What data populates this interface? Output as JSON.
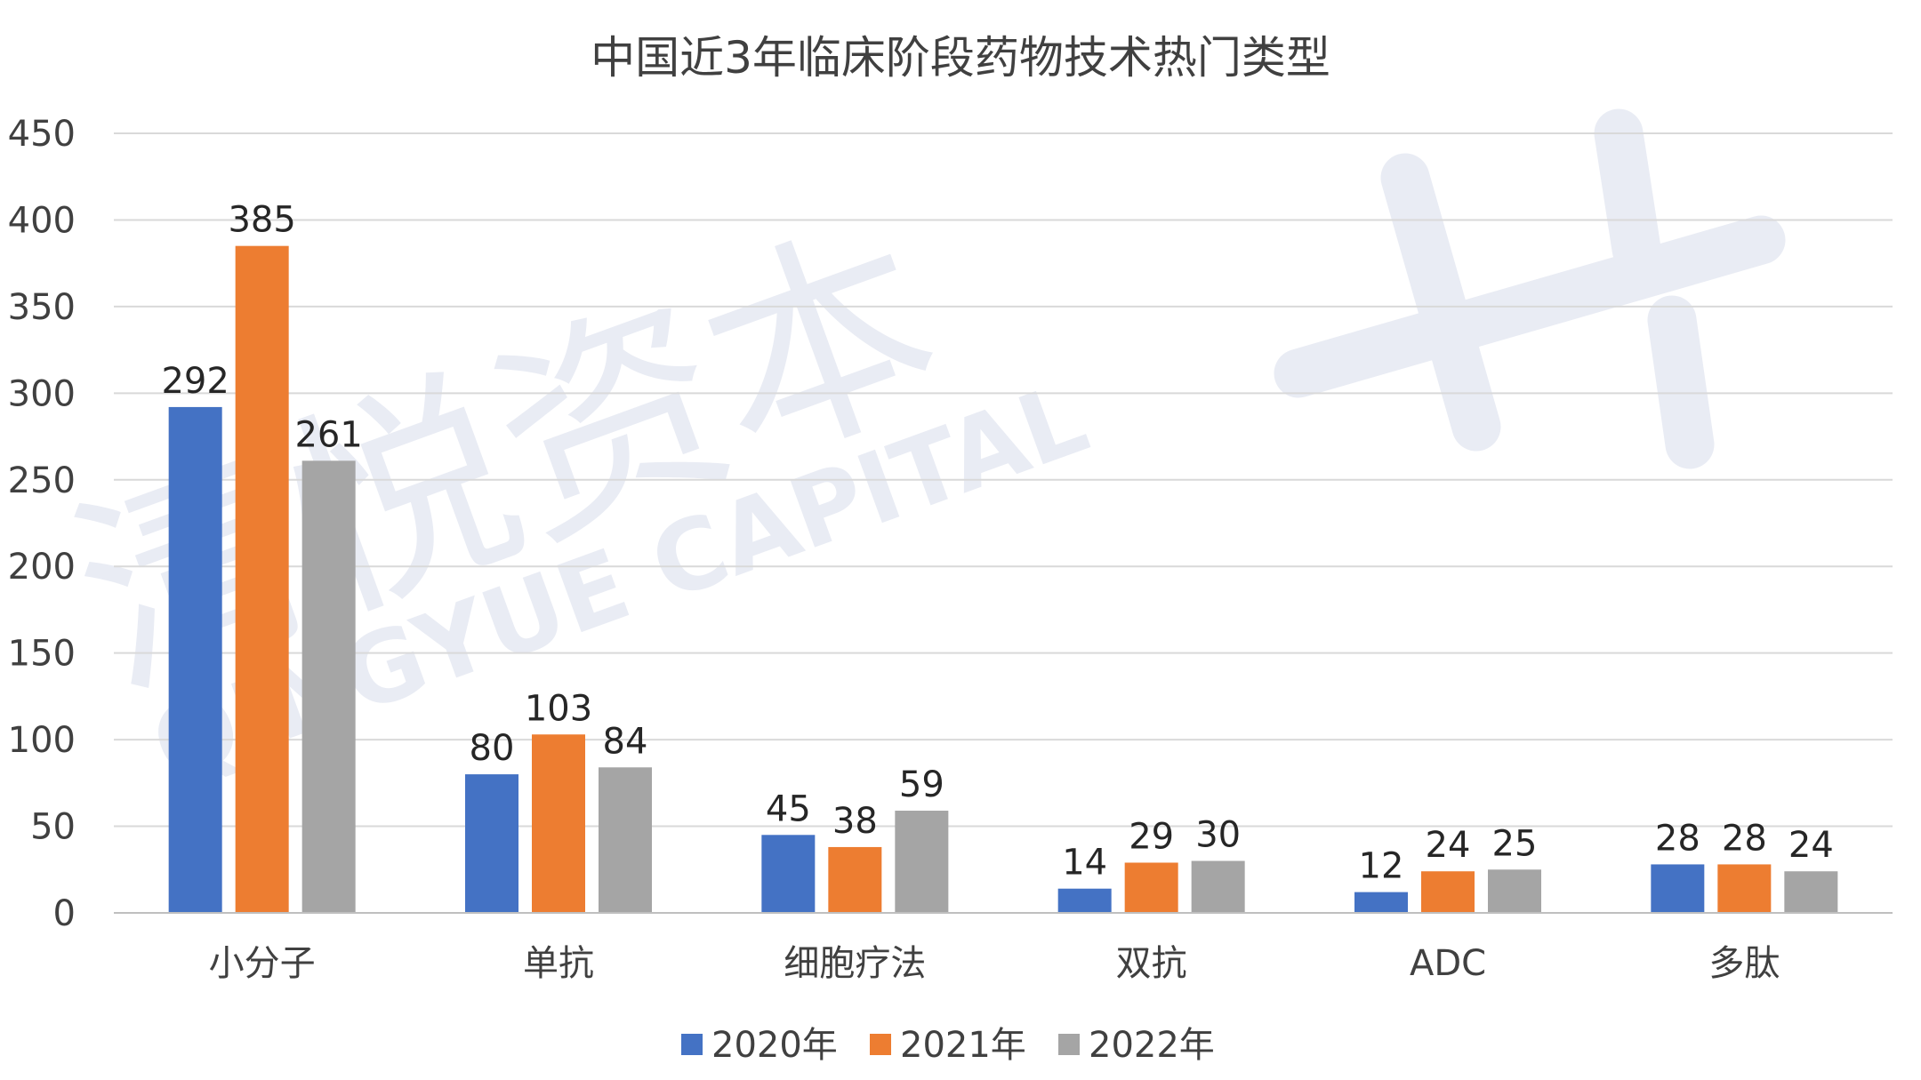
{
  "chart_data": {
    "type": "bar",
    "title": "中国近3年临床阶段药物技术热门类型",
    "categories": [
      "小分子",
      "单抗",
      "细胞疗法",
      "双抗",
      "ADC",
      "多肽"
    ],
    "series": [
      {
        "name": "2020年",
        "color": "#4472c4",
        "values": [
          292,
          80,
          45,
          14,
          12,
          28
        ]
      },
      {
        "name": "2021年",
        "color": "#ed7d31",
        "values": [
          385,
          103,
          38,
          29,
          24,
          28
        ]
      },
      {
        "name": "2022年",
        "color": "#a5a5a5",
        "values": [
          261,
          84,
          59,
          30,
          25,
          24
        ]
      }
    ],
    "ylim": [
      0,
      450
    ],
    "yticks": [
      0,
      50,
      100,
      150,
      200,
      250,
      300,
      350,
      400,
      450
    ],
    "xlabel": "",
    "ylabel": "",
    "grid": true,
    "legend_position": "bottom",
    "data_labels": true
  },
  "watermark": {
    "cn": "清悦资本",
    "en": "QINGYUE CAPITAL"
  }
}
